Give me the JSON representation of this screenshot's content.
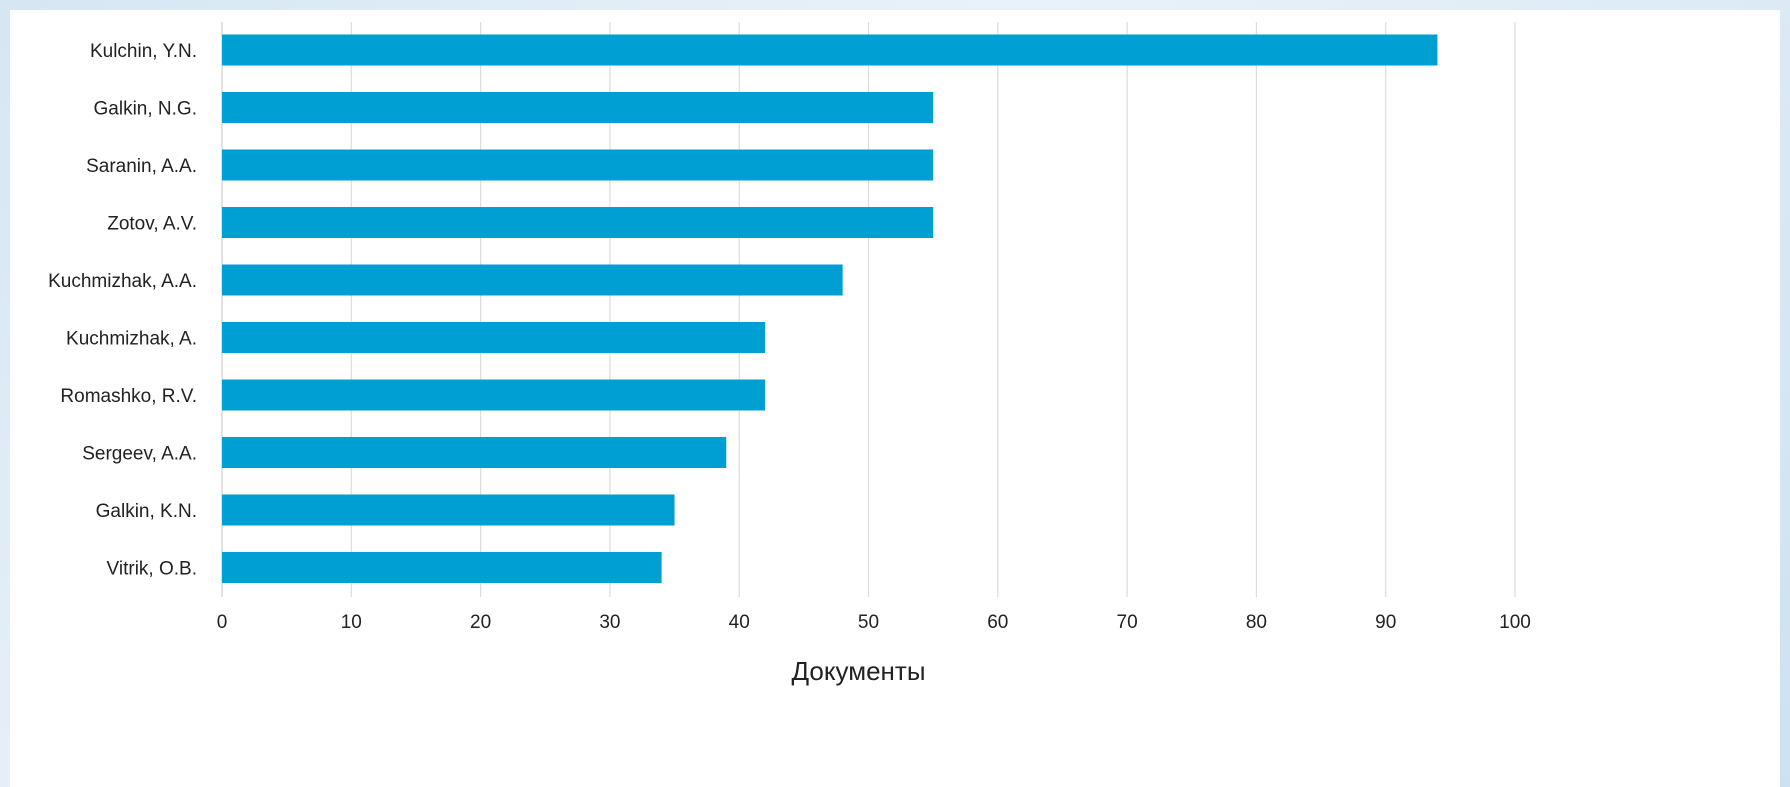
{
  "chart_data": {
    "type": "bar",
    "orientation": "horizontal",
    "categories": [
      "Kulchin, Y.N.",
      "Galkin, N.G.",
      "Saranin, A.A.",
      "Zotov, A.V.",
      "Kuchmizhak, A.A.",
      "Kuchmizhak, A.",
      "Romashko, R.V.",
      "Sergeev, A.A.",
      "Galkin, K.N.",
      "Vitrik, O.B."
    ],
    "values": [
      94,
      55,
      55,
      55,
      48,
      42,
      42,
      39,
      35,
      34
    ],
    "xlabel": "Документы",
    "xlim": [
      0,
      100
    ],
    "xticks": [
      "0",
      "10",
      "20",
      "30",
      "40",
      "50",
      "60",
      "70",
      "80",
      "90",
      "100"
    ],
    "grid": "vertical",
    "bar_color": "#009fd3"
  }
}
